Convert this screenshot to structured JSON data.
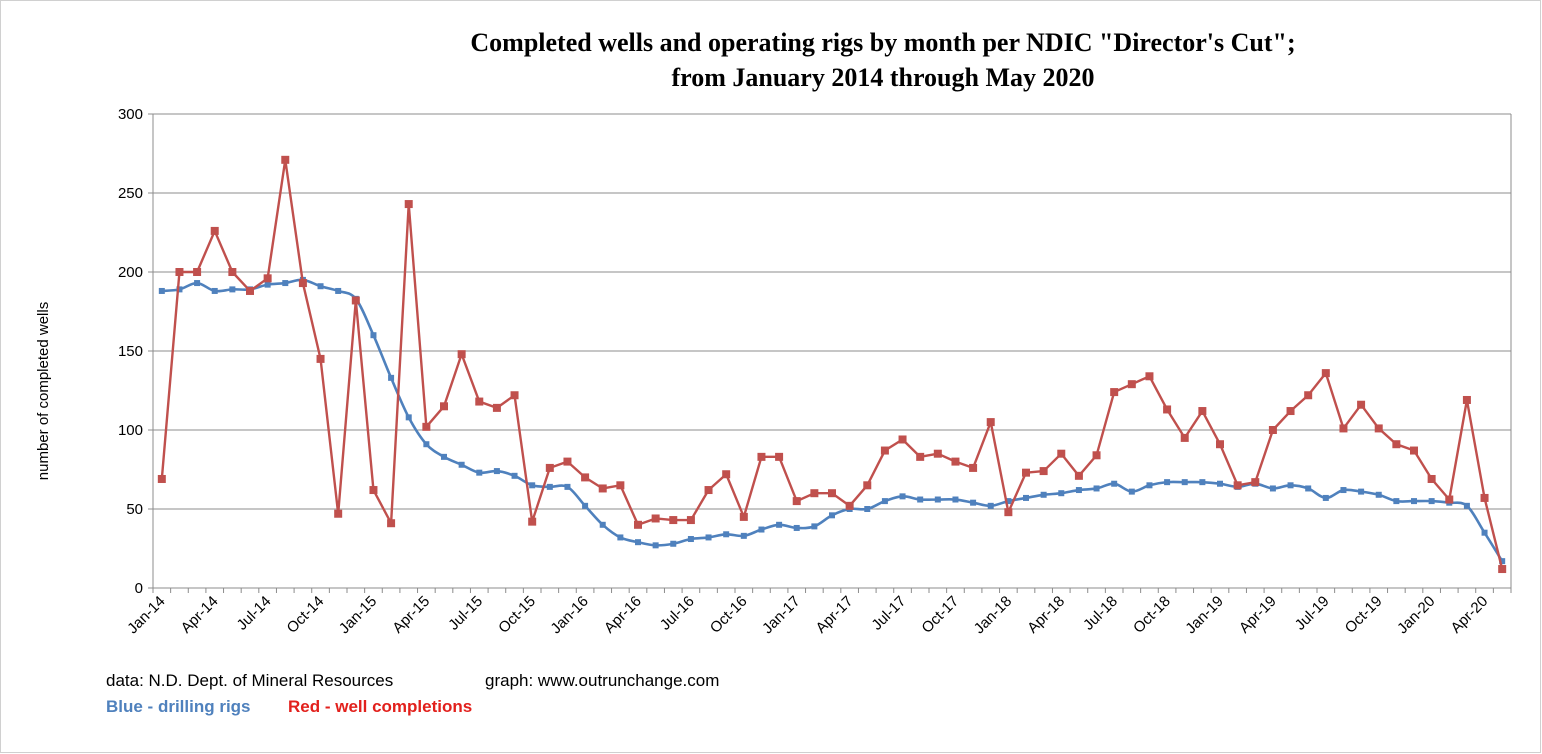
{
  "chart_data": {
    "type": "line",
    "title": "Completed wells and operating rigs by month per NDIC \"Director's Cut\";",
    "subtitle": "from January 2014 through May 2020",
    "ylabel": "number of completed wells",
    "xlabel": "",
    "ylim": [
      0,
      300
    ],
    "yticks": [
      0,
      50,
      100,
      150,
      200,
      250,
      300
    ],
    "grid": true,
    "legend_position": "bottom-left",
    "x_tick_labels": [
      "Jan-14",
      "Apr-14",
      "Jul-14",
      "Oct-14",
      "Jan-15",
      "Apr-15",
      "Jul-15",
      "Oct-15",
      "Jan-16",
      "Apr-16",
      "Jul-16",
      "Oct-16",
      "Jan-17",
      "Apr-17",
      "Jul-17",
      "Oct-17",
      "Jan-18",
      "Apr-18",
      "Jul-18",
      "Oct-18",
      "Jan-19",
      "Apr-19",
      "Jul-19",
      "Oct-19",
      "Jan-20",
      "Apr-20"
    ],
    "tick_every": 3,
    "series": [
      {
        "name": "drilling rigs",
        "color": "#4f81bd",
        "values": [
          188,
          189,
          193,
          188,
          189,
          189,
          192,
          193,
          195,
          191,
          188,
          183,
          160,
          133,
          108,
          91,
          83,
          78,
          73,
          74,
          71,
          65,
          64,
          64,
          52,
          40,
          32,
          29,
          27,
          28,
          31,
          32,
          34,
          33,
          37,
          40,
          38,
          39,
          46,
          50,
          50,
          55,
          58,
          56,
          56,
          56,
          54,
          52,
          55,
          57,
          59,
          60,
          62,
          63,
          66,
          61,
          65,
          67,
          67,
          67,
          66,
          64,
          66,
          63,
          65,
          63,
          57,
          62,
          61,
          59,
          55,
          55,
          55,
          54,
          52,
          35,
          17
        ]
      },
      {
        "name": "well completions",
        "color": "#c0504d",
        "values": [
          69,
          200,
          200,
          226,
          200,
          188,
          196,
          271,
          193,
          145,
          47,
          182,
          62,
          41,
          243,
          102,
          115,
          148,
          118,
          114,
          122,
          42,
          76,
          80,
          70,
          63,
          65,
          40,
          44,
          43,
          43,
          62,
          72,
          45,
          83,
          83,
          55,
          60,
          60,
          52,
          65,
          87,
          94,
          83,
          85,
          80,
          76,
          105,
          48,
          73,
          74,
          85,
          71,
          84,
          124,
          129,
          134,
          113,
          95,
          112,
          91,
          65,
          67,
          100,
          112,
          122,
          136,
          101,
          116,
          101,
          91,
          87,
          69,
          56,
          119,
          57,
          12
        ]
      }
    ]
  },
  "footer": {
    "source": "data: N.D. Dept. of Mineral Resources",
    "graph": "graph:  www.outrunchange.com",
    "legend_blue": "Blue - drilling rigs",
    "legend_red": "Red - well completions",
    "blue_color": "#4f81bd",
    "red_color": "#e2201c"
  }
}
